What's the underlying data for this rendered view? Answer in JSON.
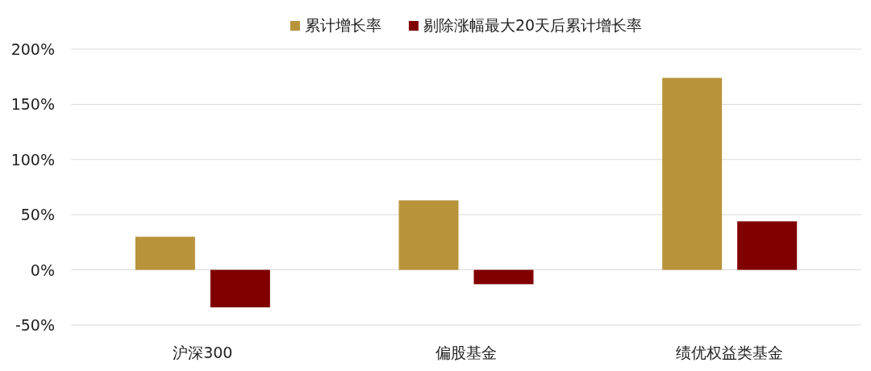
{
  "chart_data": {
    "type": "bar",
    "categories": [
      "沪深300",
      "偏股基金",
      "绩优权益类基金"
    ],
    "series": [
      {
        "name": "累计增长率",
        "color": "#b8933a",
        "values": [
          30,
          63,
          174
        ]
      },
      {
        "name": "剔除涨幅最大20天后累计增长率",
        "color": "#800000",
        "values": [
          -34,
          -13,
          44
        ]
      }
    ],
    "ylim": [
      -50,
      200
    ],
    "yticks": [
      {
        "value": -50,
        "label": "-50%"
      },
      {
        "value": 0,
        "label": "0%"
      },
      {
        "value": 50,
        "label": "50%"
      },
      {
        "value": 100,
        "label": "100%"
      },
      {
        "value": 150,
        "label": "150%"
      },
      {
        "value": 200,
        "label": "200%"
      }
    ],
    "grid": "y",
    "legend": "top"
  }
}
